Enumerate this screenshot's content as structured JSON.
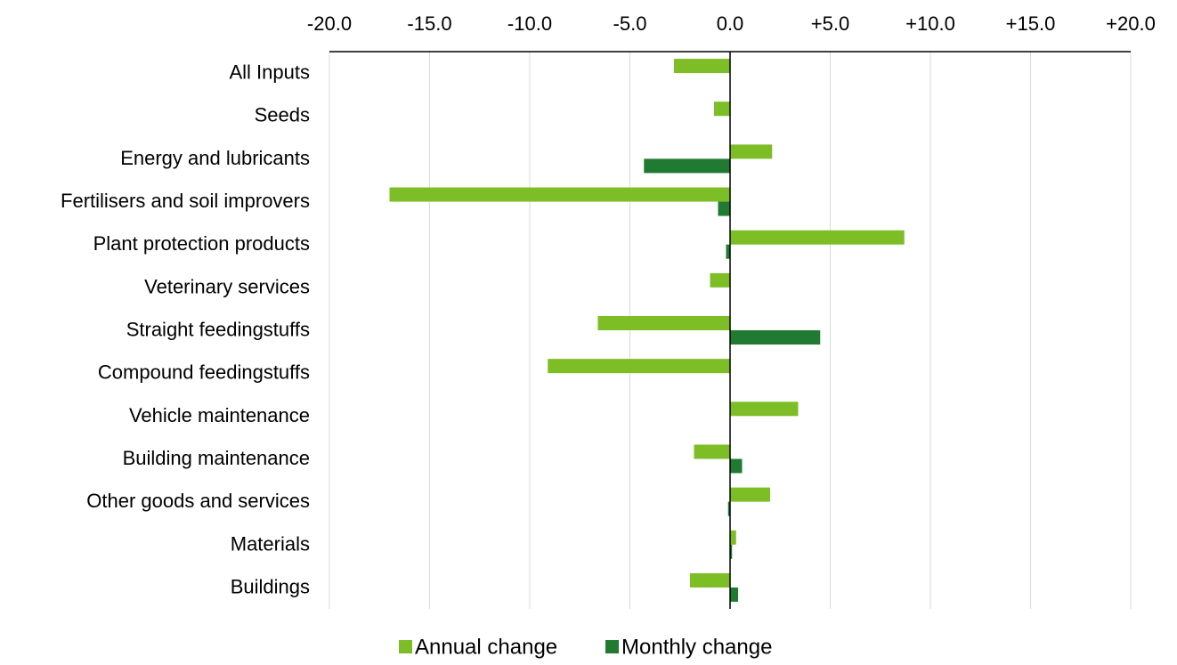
{
  "chart_data": {
    "type": "bar",
    "orientation": "horizontal",
    "categories": [
      "All Inputs",
      "Seeds",
      "Energy and lubricants",
      "Fertilisers and soil improvers",
      "Plant protection products",
      "Veterinary services",
      "Straight feedingstuffs",
      "Compound feedingstuffs",
      "Vehicle maintenance",
      "Building maintenance",
      "Other goods and services",
      "Materials",
      "Buildings"
    ],
    "series": [
      {
        "name": "Annual change",
        "color": "#7dbd26",
        "values": [
          -2.8,
          -0.8,
          2.1,
          -17.0,
          8.7,
          -1.0,
          -6.6,
          -9.1,
          3.4,
          -1.8,
          2.0,
          0.3,
          -2.0
        ]
      },
      {
        "name": "Monthly change",
        "color": "#217a32",
        "values": [
          0.0,
          0.0,
          -4.3,
          -0.6,
          -0.2,
          0.0,
          4.5,
          0.0,
          0.0,
          0.6,
          -0.1,
          0.1,
          0.4
        ]
      }
    ],
    "xlim": [
      -20,
      20
    ],
    "xticks": [
      "-20.0",
      "-15.0",
      "-10.0",
      "-5.0",
      "0.0",
      "+5.0",
      "+10.0",
      "+15.0",
      "+20.0"
    ],
    "xtick_values": [
      -20,
      -15,
      -10,
      -5,
      0,
      5,
      10,
      15,
      20
    ],
    "x_axis_position": "top",
    "grid": true,
    "gridline_color": "#d9d9d9",
    "axis_color": "#000000",
    "legend_position": "bottom-center"
  }
}
